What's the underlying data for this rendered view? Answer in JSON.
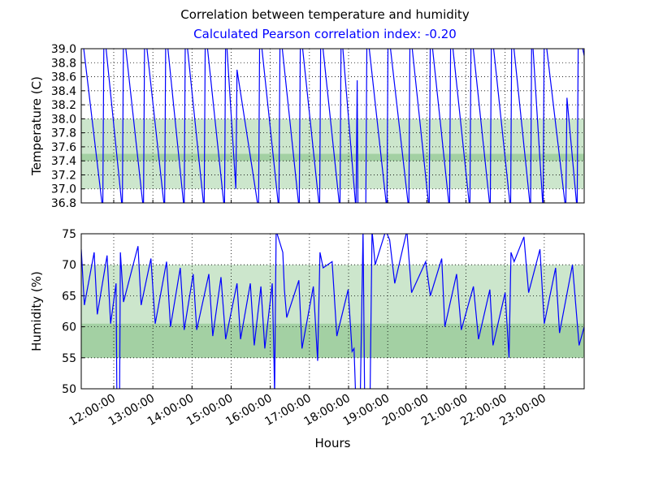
{
  "chart_data": [
    {
      "type": "line",
      "title": "Correlation between temperature and humidity",
      "subtitle": "Calculated Pearson correlation index: -0.20",
      "ylabel": "Temperature (C)",
      "grid": true,
      "xlim": [
        11.17,
        24.02
      ],
      "xticks": [
        12,
        13,
        14,
        15,
        16,
        17,
        18,
        19,
        20,
        21,
        22,
        23
      ],
      "ylim": [
        36.8,
        39.0
      ],
      "yticks": [
        36.8,
        {
          "value": 37.0,
          "label": "37.0"
        },
        37.2,
        37.4,
        37.6,
        37.8,
        {
          "value": 38.0,
          "label": "38.0"
        },
        38.2,
        38.4,
        38.6,
        38.8,
        {
          "value": 39.0,
          "label": "39.0"
        }
      ],
      "bands": [
        {
          "from": 37.0,
          "to": 38.0,
          "color": "#cce6cc"
        },
        {
          "from": 37.4,
          "to": 37.5,
          "color": "#a3d0a3"
        }
      ],
      "series": [
        {
          "color": "#0000ff",
          "x": [
            11.17,
            11.72,
            11.75,
            12.22,
            12.25,
            12.76,
            12.79,
            13.3,
            13.33,
            13.8,
            13.83,
            14.31,
            14.34,
            14.83,
            14.86,
            15.12,
            15.15,
            15.7,
            15.73,
            16.22,
            16.25,
            16.74,
            16.77,
            17.26,
            17.29,
            17.78,
            17.81,
            18.19,
            18.22,
            18.24,
            18.44,
            18.47,
            18.98,
            19.01,
            19.54,
            19.57,
            20.06,
            20.09,
            20.58,
            20.61,
            21.1,
            21.13,
            21.62,
            21.65,
            22.14,
            22.17,
            22.65,
            22.68,
            22.97,
            23.0,
            23.55,
            23.58,
            23.84,
            23.87,
            24.02
          ],
          "values": [
            39.3,
            36.7,
            39.3,
            36.7,
            39.3,
            36.7,
            39.3,
            36.7,
            39.3,
            36.7,
            39.3,
            36.7,
            39.3,
            36.7,
            39.3,
            37.0,
            38.7,
            36.7,
            39.3,
            36.7,
            39.3,
            36.7,
            39.3,
            36.7,
            39.3,
            36.7,
            39.3,
            36.7,
            38.55,
            36.7,
            36.7,
            39.3,
            36.7,
            39.3,
            36.7,
            39.3,
            36.7,
            39.3,
            36.7,
            39.3,
            36.7,
            39.3,
            36.7,
            39.3,
            36.7,
            39.3,
            36.7,
            39.3,
            36.7,
            39.3,
            36.7,
            38.3,
            36.7,
            39.3,
            38.9
          ]
        }
      ]
    },
    {
      "type": "line",
      "ylabel": "Humidity (%)",
      "xlabel": "Hours",
      "grid": true,
      "xlim": [
        11.17,
        24.02
      ],
      "xticks": [
        {
          "value": 12,
          "label": "12:00:00"
        },
        {
          "value": 13,
          "label": "13:00:00"
        },
        {
          "value": 14,
          "label": "14:00:00"
        },
        {
          "value": 15,
          "label": "15:00:00"
        },
        {
          "value": 16,
          "label": "16:00:00"
        },
        {
          "value": 17,
          "label": "17:00:00"
        },
        {
          "value": 18,
          "label": "18:00:00"
        },
        {
          "value": 19,
          "label": "19:00:00"
        },
        {
          "value": 20,
          "label": "20:00:00"
        },
        {
          "value": 21,
          "label": "21:00:00"
        },
        {
          "value": 22,
          "label": "22:00:00"
        },
        {
          "value": 23,
          "label": "23:00:00"
        }
      ],
      "ylim": [
        50,
        75
      ],
      "yticks": [
        50,
        55,
        60,
        65,
        70,
        75
      ],
      "bands": [
        {
          "from": 55,
          "to": 70,
          "color": "#cce6cc"
        },
        {
          "from": 55,
          "to": 60.5,
          "color": "#a3d0a3"
        }
      ],
      "series": [
        {
          "color": "#0000ff",
          "x": [
            11.17,
            11.25,
            11.5,
            11.58,
            11.83,
            11.92,
            12.06,
            12.08,
            12.15,
            12.17,
            12.25,
            12.62,
            12.7,
            12.95,
            13.06,
            13.35,
            13.45,
            13.7,
            13.8,
            14.03,
            14.12,
            14.43,
            14.53,
            14.74,
            14.86,
            15.15,
            15.24,
            15.49,
            15.59,
            15.76,
            15.86,
            16.05,
            16.09,
            16.11,
            16.15,
            16.32,
            16.36,
            16.42,
            16.73,
            16.81,
            17.1,
            17.21,
            17.27,
            17.35,
            17.58,
            17.7,
            17.99,
            18.09,
            18.14,
            18.18,
            18.3,
            18.37,
            18.41,
            18.55,
            18.6,
            18.68,
            18.95,
            19.05,
            19.18,
            19.49,
            19.61,
            19.97,
            20.09,
            20.38,
            20.46,
            20.76,
            20.88,
            21.19,
            21.32,
            21.61,
            21.69,
            22.0,
            22.1,
            22.15,
            22.23,
            22.48,
            22.6,
            22.89,
            23.0,
            23.29,
            23.39,
            23.72,
            23.89,
            24.02
          ],
          "values": [
            72.5,
            63.5,
            72,
            62,
            71.5,
            60.5,
            67,
            49,
            49,
            72,
            64,
            73,
            63.5,
            71,
            60.5,
            70.5,
            60,
            69.5,
            59.5,
            68.5,
            59.5,
            68.5,
            58.5,
            68,
            58,
            67,
            58,
            67,
            57,
            66.5,
            56.5,
            67,
            56,
            49,
            75.5,
            72,
            66,
            61.5,
            67.5,
            56.5,
            66.5,
            54.5,
            72,
            69.5,
            70.5,
            58.5,
            66,
            56,
            56.5,
            49,
            49,
            75.5,
            49,
            49,
            75.5,
            70,
            75.5,
            74,
            67,
            75.5,
            65.5,
            70.5,
            65,
            71,
            60,
            68.5,
            59.5,
            66.5,
            58,
            66,
            57,
            65.5,
            55,
            72,
            70.5,
            74.5,
            65.5,
            72.5,
            60.5,
            69.5,
            59,
            70,
            57,
            60
          ]
        }
      ]
    }
  ]
}
